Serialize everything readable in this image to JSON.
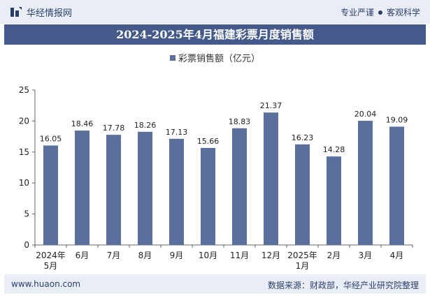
{
  "header": {
    "brand": "华经情报网",
    "right_left": "专业严谨",
    "right_right": "客观科学"
  },
  "footer": {
    "url": "www.huaon.com",
    "source": "数据来源：财政部，华经产业研究院整理"
  },
  "colors": {
    "bar": "#5b6f9c",
    "title_bg": "#445a8a",
    "band_bg": "#e9eef6"
  },
  "chart_data": {
    "type": "bar",
    "title": "2024-2025年4月福建彩票月度销售额",
    "series": [
      {
        "name": "彩票销售额（亿元）",
        "values": [
          16.05,
          18.46,
          17.78,
          18.26,
          17.13,
          15.66,
          18.83,
          21.37,
          16.23,
          14.28,
          20.04,
          19.09
        ]
      }
    ],
    "categories": [
      [
        "2024年",
        "5月"
      ],
      [
        "6月"
      ],
      [
        "7月"
      ],
      [
        "8月"
      ],
      [
        "9月"
      ],
      [
        "10月"
      ],
      [
        "11月"
      ],
      [
        "12月"
      ],
      [
        "2025年",
        "1月"
      ],
      [
        "2月"
      ],
      [
        "3月"
      ],
      [
        "4月"
      ]
    ],
    "yticks": [
      0,
      5,
      10,
      15,
      20,
      25
    ],
    "ylim": [
      0,
      25
    ],
    "legend_position": "top-center",
    "grid": false
  }
}
